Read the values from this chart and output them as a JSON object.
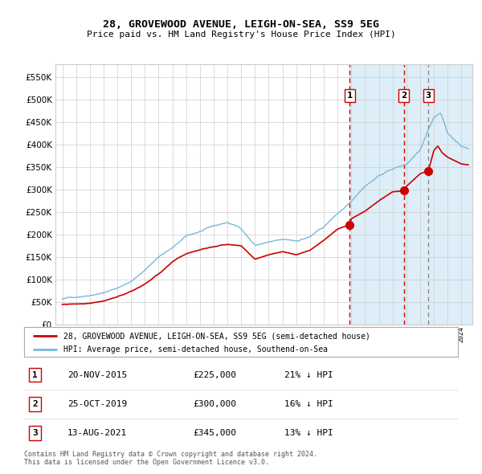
{
  "title": "28, GROVEWOOD AVENUE, LEIGH-ON-SEA, SS9 5EG",
  "subtitle": "Price paid vs. HM Land Registry's House Price Index (HPI)",
  "legend_line1": "28, GROVEWOOD AVENUE, LEIGH-ON-SEA, SS9 5EG (semi-detached house)",
  "legend_line2": "HPI: Average price, semi-detached house, Southend-on-Sea",
  "footer": "Contains HM Land Registry data © Crown copyright and database right 2024.\nThis data is licensed under the Open Government Licence v3.0.",
  "transactions": [
    {
      "num": 1,
      "date": "20-NOV-2015",
      "price": 225000,
      "pct": "21%",
      "dir": "↓",
      "x": 2015.88
    },
    {
      "num": 2,
      "date": "25-OCT-2019",
      "price": 300000,
      "pct": "16%",
      "dir": "↓",
      "x": 2019.81
    },
    {
      "num": 3,
      "date": "13-AUG-2021",
      "price": 345000,
      "pct": "13%",
      "dir": "↓",
      "x": 2021.61
    }
  ],
  "hpi_color": "#7ab8d9",
  "price_color": "#cc0000",
  "vline_color_red": "#cc0000",
  "vline_color_gray": "#888888",
  "bg_highlight_color": "#ddeef8",
  "grid_color": "#cccccc",
  "ylim": [
    0,
    580000
  ],
  "yticks": [
    0,
    50000,
    100000,
    150000,
    200000,
    250000,
    300000,
    350000,
    400000,
    450000,
    500000,
    550000
  ],
  "xlim_start": 1994.5,
  "xlim_end": 2024.8
}
